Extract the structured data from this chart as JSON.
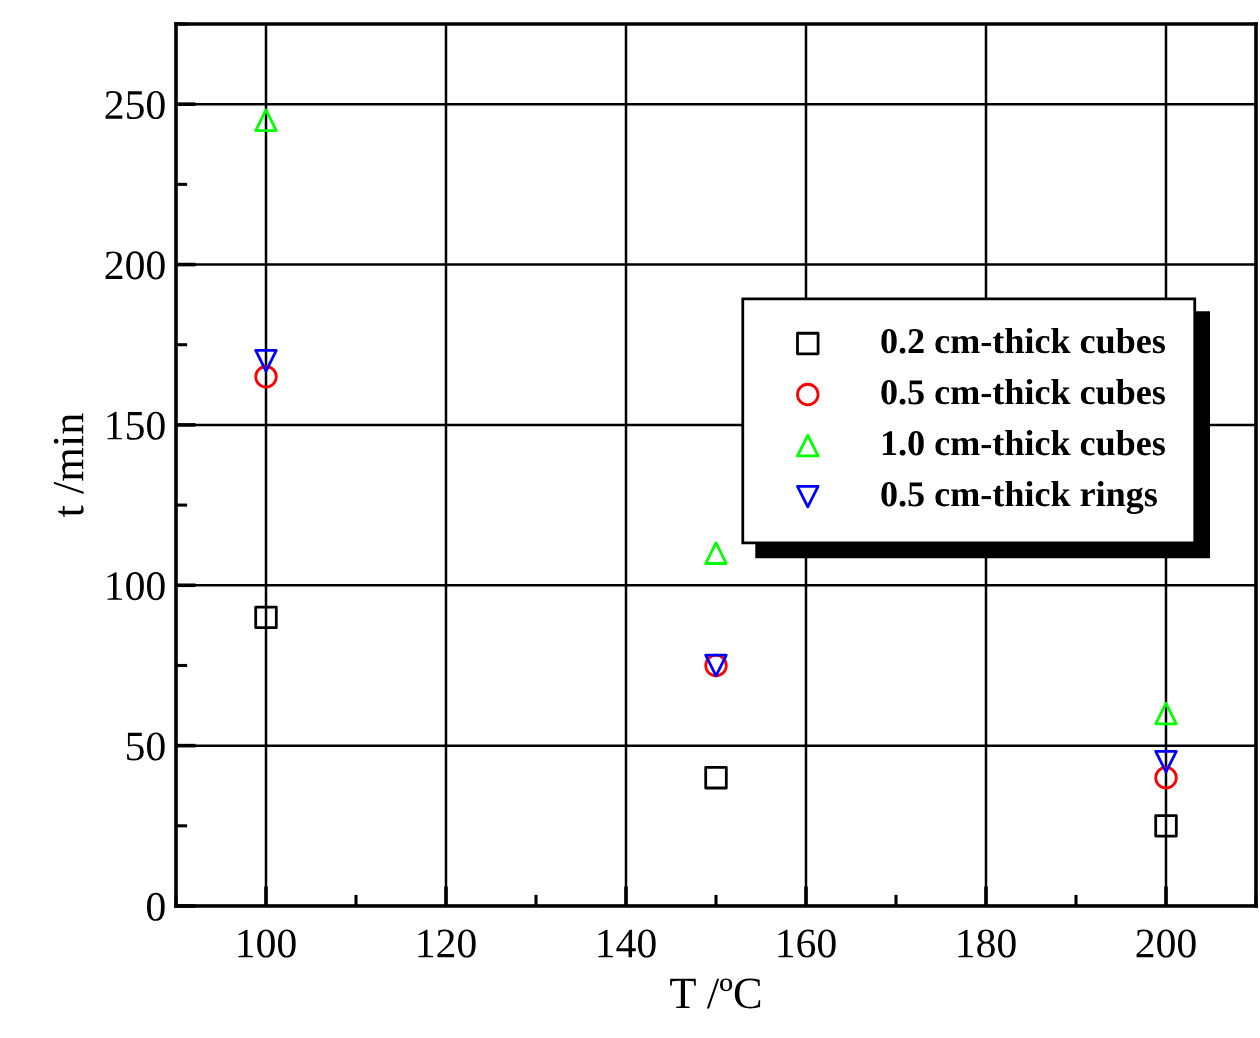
{
  "chart_data": {
    "type": "scatter",
    "xlabel": "T /ºC",
    "ylabel": "t /min",
    "x": [
      100,
      150,
      200
    ],
    "series": [
      {
        "name": "0.2 cm-thick cubes",
        "color": "#000000",
        "marker": "square",
        "values": [
          90,
          40,
          25
        ]
      },
      {
        "name": "0.5 cm-thick cubes",
        "color": "#ff0000",
        "marker": "circle",
        "values": [
          165,
          75,
          40
        ]
      },
      {
        "name": "1.0 cm-thick cubes",
        "color": "#00ff00",
        "marker": "triangle",
        "values": [
          245,
          110,
          60
        ]
      },
      {
        "name": "0.5 cm-thick rings",
        "color": "#0000ff",
        "marker": "triangle_down",
        "values": [
          170,
          75,
          45
        ]
      }
    ],
    "xlim": [
      90,
      210
    ],
    "xticks": [
      100,
      120,
      140,
      160,
      180,
      200
    ],
    "ylim": [
      0,
      275
    ],
    "yticks": [
      0,
      50,
      100,
      150,
      200,
      250
    ],
    "grid": true,
    "legend": "right"
  }
}
